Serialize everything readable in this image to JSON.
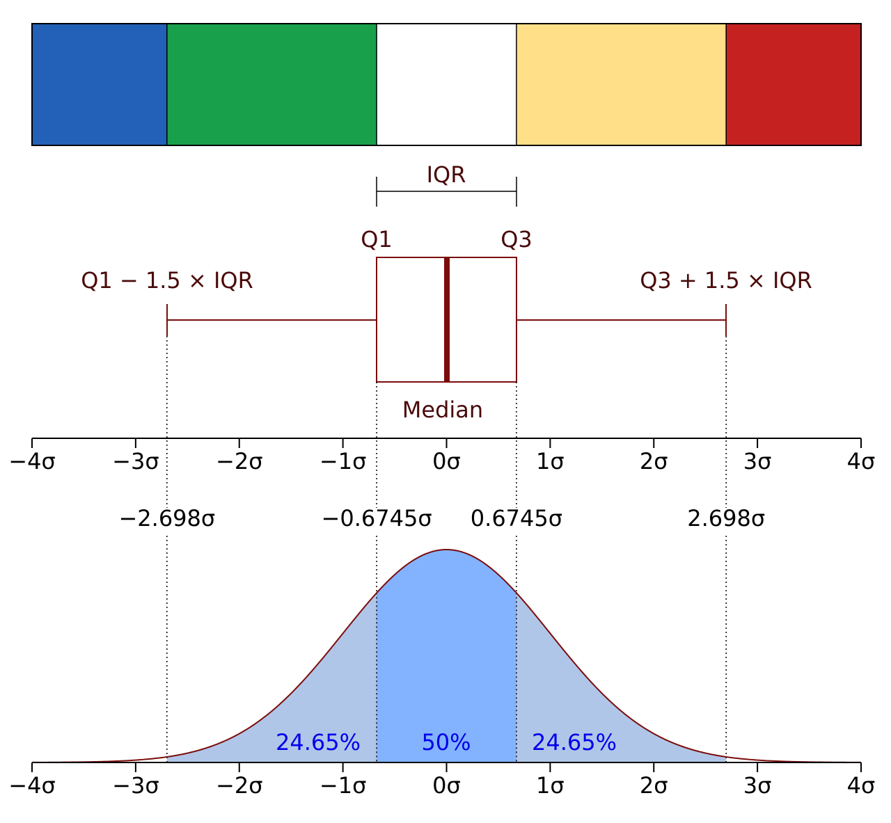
{
  "bands": [
    {
      "name": "lower-outlier-band",
      "from": -4,
      "to": -2.698,
      "color": "#2360b7"
    },
    {
      "name": "lower-whisker-band",
      "from": -2.698,
      "to": -0.6745,
      "color": "#19a04b"
    },
    {
      "name": "iqr-band",
      "from": -0.6745,
      "to": 0.6745,
      "color": "#ffffff"
    },
    {
      "name": "upper-whisker-band",
      "from": 0.6745,
      "to": 2.698,
      "color": "#ffdf88"
    },
    {
      "name": "upper-outlier-band",
      "from": 2.698,
      "to": 4,
      "color": "#c52121"
    }
  ],
  "iqr_label": "IQR",
  "boxplot": {
    "q1_label": "Q1",
    "q3_label": "Q3",
    "lower_fence_label": "Q1 − 1.5 × IQR",
    "upper_fence_label": "Q3 + 1.5 × IQR",
    "median_label": "Median",
    "q1": -0.6745,
    "median": 0,
    "q3": 0.6745,
    "lower_fence": -2.698,
    "upper_fence": 2.698,
    "color": "#7b0c0c",
    "label_color": "#4a0a0a"
  },
  "axis_ticks": [
    "−4σ",
    "−3σ",
    "−2σ",
    "−1σ",
    "0σ",
    "1σ",
    "2σ",
    "3σ",
    "4σ"
  ],
  "quantile_labels": [
    "−2.698σ",
    "−0.6745σ",
    "0.6745σ",
    "2.698σ"
  ],
  "chart_data": {
    "type": "area",
    "x_range": [
      -4,
      4
    ],
    "distribution": "normal",
    "mean": 0,
    "sd": 1,
    "regions": [
      {
        "from": -2.698,
        "to": -0.6745,
        "label": "24.65%",
        "color": "#b0c6e8"
      },
      {
        "from": -0.6745,
        "to": 0.6745,
        "label": "50%",
        "color": "#83b3ff"
      },
      {
        "from": 0.6745,
        "to": 2.698,
        "label": "24.65%",
        "color": "#b0c6e8"
      }
    ],
    "curve_color": "#7b0c0c",
    "percent_color": "#0000ee"
  }
}
